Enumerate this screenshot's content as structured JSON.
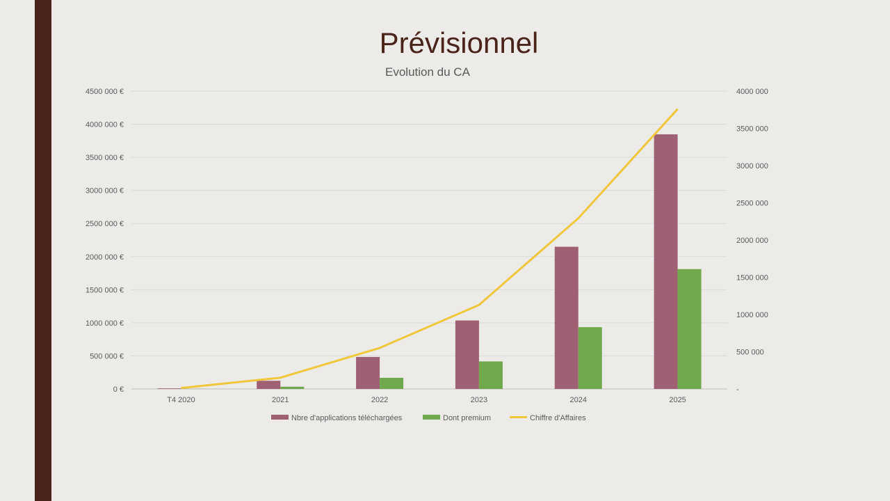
{
  "slide": {
    "title": "Prévisionnel",
    "accent_color": "#4a231a"
  },
  "chart_data": {
    "type": "bar",
    "title": "Evolution du CA",
    "categories": [
      "T4 2020",
      "2021",
      "2022",
      "2023",
      "2024",
      "2025"
    ],
    "series": [
      {
        "name": "Nbre d'applications téléchargées",
        "type": "bar",
        "axis": "right",
        "color": "#a06073",
        "values": [
          8000,
          110000,
          430000,
          920000,
          1910000,
          3420000
        ]
      },
      {
        "name": "Dont premium",
        "type": "bar",
        "axis": "right",
        "color": "#70a84c",
        "values": [
          2000,
          30000,
          150000,
          370000,
          830000,
          1610000
        ]
      },
      {
        "name": "Chiffre d'Affaires",
        "type": "line",
        "axis": "left",
        "color": "#f0c63a",
        "values": [
          15000,
          170000,
          620000,
          1270000,
          2580000,
          4230000
        ]
      }
    ],
    "y_left": {
      "range": [
        0,
        4500000
      ],
      "ticks": [
        "0 €",
        "500 000 €",
        "1000 000 €",
        "1500 000 €",
        "2000 000 €",
        "2500 000 €",
        "3000 000 €",
        "3500 000 €",
        "4000 000 €",
        "4500 000 €"
      ]
    },
    "y_right": {
      "range": [
        0,
        4000000
      ],
      "ticks": [
        "-",
        "500 000",
        "1000 000",
        "1500 000",
        "2000 000",
        "2500 000",
        "3000 000",
        "3500 000",
        "4000 000"
      ]
    },
    "grid": true,
    "legend": "bottom"
  }
}
